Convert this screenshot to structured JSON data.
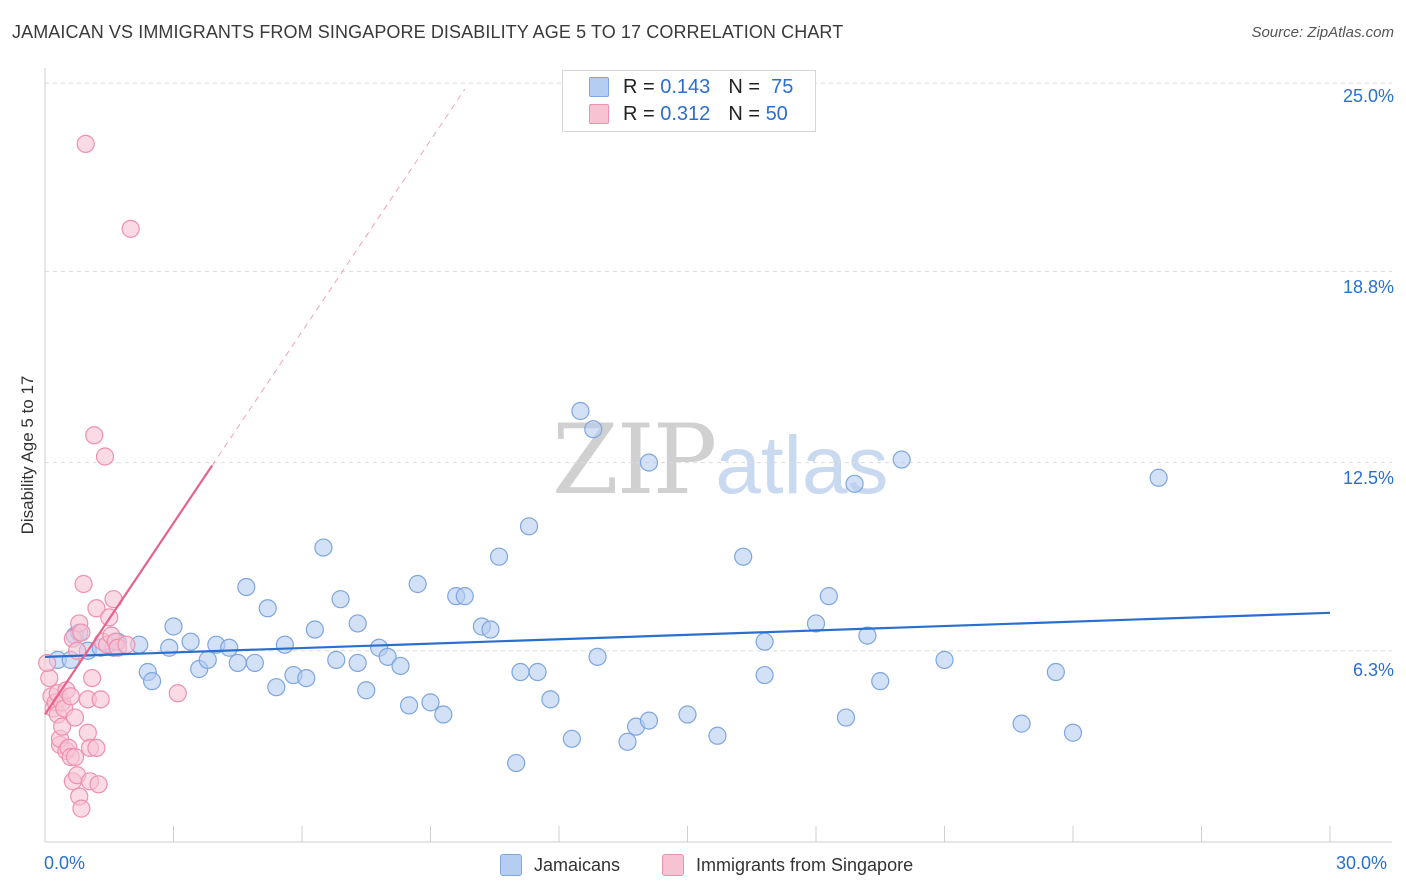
{
  "header": {
    "title": "JAMAICAN VS IMMIGRANTS FROM SINGAPORE DISABILITY AGE 5 TO 17 CORRELATION CHART",
    "source": "Source: ZipAtlas.com"
  },
  "watermark": {
    "zip": "ZIP",
    "atlas": "atlas"
  },
  "legend_top": {
    "rows": [
      {
        "r_label": "R =",
        "r_value": "0.143",
        "n_label": "N =",
        "n_value": "75"
      },
      {
        "r_label": "R =",
        "r_value": "0.312",
        "n_label": "N =",
        "n_value": "50"
      }
    ]
  },
  "legend_bottom": {
    "series_a": "Jamaicans",
    "series_b": "Immigrants from Singapore"
  },
  "axes": {
    "x_left": "0.0%",
    "x_right": "30.0%",
    "y_ticks": [
      "25.0%",
      "18.8%",
      "12.5%",
      "6.3%"
    ]
  },
  "colors": {
    "blue_fill": "#b5cdf0",
    "blue_stroke": "#7ea6de",
    "blue_line": "#2a6fd0",
    "pink_fill": "#f7c3d3",
    "pink_stroke": "#ee90ae",
    "pink_line": "#e8628e",
    "grid": "#dcdcdc",
    "accent_text": "#2a6fd0"
  },
  "chart_data": {
    "type": "scatter",
    "title": "JAMAICAN VS IMMIGRANTS FROM SINGAPORE DISABILITY AGE 5 TO 17 CORRELATION CHART",
    "xlabel": "",
    "ylabel": "Disability Age 5 to 17",
    "xlim": [
      0,
      30
    ],
    "ylim": [
      0,
      25.5
    ],
    "y_gridlines": [
      6.3,
      12.5,
      18.8,
      25.0
    ],
    "series": [
      {
        "name": "Jamaicans",
        "r": 0.143,
        "n": 75,
        "trend": {
          "x": [
            0,
            30
          ],
          "y": [
            6.1,
            7.55
          ]
        },
        "points": [
          [
            0.3,
            6.0
          ],
          [
            0.6,
            6.0
          ],
          [
            0.7,
            6.8
          ],
          [
            0.8,
            6.9
          ],
          [
            1.0,
            6.3
          ],
          [
            1.3,
            6.4
          ],
          [
            1.6,
            6.4
          ],
          [
            1.7,
            6.6
          ],
          [
            2.2,
            6.5
          ],
          [
            2.4,
            5.6
          ],
          [
            2.5,
            5.3
          ],
          [
            2.9,
            6.4
          ],
          [
            3.0,
            7.1
          ],
          [
            3.4,
            6.6
          ],
          [
            3.6,
            5.7
          ],
          [
            3.8,
            6.0
          ],
          [
            4.0,
            6.5
          ],
          [
            4.3,
            6.4
          ],
          [
            4.5,
            5.9
          ],
          [
            4.7,
            8.4
          ],
          [
            4.9,
            5.9
          ],
          [
            5.2,
            7.7
          ],
          [
            5.4,
            5.1
          ],
          [
            5.6,
            6.5
          ],
          [
            5.8,
            5.5
          ],
          [
            6.1,
            5.4
          ],
          [
            6.3,
            7.0
          ],
          [
            6.5,
            9.7
          ],
          [
            6.8,
            6.0
          ],
          [
            6.9,
            8.0
          ],
          [
            7.3,
            5.9
          ],
          [
            7.5,
            5.0
          ],
          [
            7.3,
            7.2
          ],
          [
            7.8,
            6.4
          ],
          [
            8.0,
            6.1
          ],
          [
            8.3,
            5.8
          ],
          [
            8.5,
            4.5
          ],
          [
            8.7,
            8.5
          ],
          [
            9.0,
            4.6
          ],
          [
            9.3,
            4.2
          ],
          [
            9.6,
            8.1
          ],
          [
            9.8,
            8.1
          ],
          [
            10.2,
            7.1
          ],
          [
            10.4,
            7.0
          ],
          [
            10.6,
            9.4
          ],
          [
            11.0,
            2.6
          ],
          [
            11.3,
            10.4
          ],
          [
            11.1,
            5.6
          ],
          [
            11.5,
            5.6
          ],
          [
            11.8,
            4.7
          ],
          [
            12.5,
            14.2
          ],
          [
            12.3,
            3.4
          ],
          [
            12.8,
            13.6
          ],
          [
            12.9,
            6.1
          ],
          [
            13.6,
            3.3
          ],
          [
            13.8,
            3.8
          ],
          [
            14.1,
            12.5
          ],
          [
            14.1,
            4.0
          ],
          [
            15.0,
            4.2
          ],
          [
            15.7,
            3.5
          ],
          [
            16.3,
            9.4
          ],
          [
            16.8,
            6.6
          ],
          [
            16.8,
            5.5
          ],
          [
            18.0,
            7.2
          ],
          [
            18.3,
            8.1
          ],
          [
            18.7,
            4.1
          ],
          [
            18.9,
            11.8
          ],
          [
            19.2,
            6.8
          ],
          [
            19.5,
            5.3
          ],
          [
            20.0,
            12.6
          ],
          [
            21.0,
            6.0
          ],
          [
            22.8,
            3.9
          ],
          [
            23.6,
            5.6
          ],
          [
            24.0,
            3.6
          ],
          [
            26.0,
            12.0
          ]
        ]
      },
      {
        "name": "Immigrants from Singapore",
        "r": 0.312,
        "n": 50,
        "trend": {
          "x": [
            0,
            3.9
          ],
          "y": [
            4.2,
            12.4
          ],
          "dashed_extension": {
            "x": [
              3.9,
              9.8
            ],
            "y": [
              12.4,
              24.8
            ]
          }
        },
        "points": [
          [
            0.1,
            5.4
          ],
          [
            0.15,
            4.8
          ],
          [
            0.2,
            4.4
          ],
          [
            0.25,
            4.6
          ],
          [
            0.3,
            4.9
          ],
          [
            0.3,
            4.2
          ],
          [
            0.35,
            3.2
          ],
          [
            0.35,
            3.4
          ],
          [
            0.4,
            4.6
          ],
          [
            0.4,
            3.8
          ],
          [
            0.45,
            4.4
          ],
          [
            0.5,
            5.0
          ],
          [
            0.5,
            3.0
          ],
          [
            0.55,
            3.1
          ],
          [
            0.6,
            4.8
          ],
          [
            0.6,
            2.8
          ],
          [
            0.65,
            6.7
          ],
          [
            0.65,
            2.0
          ],
          [
            0.7,
            4.1
          ],
          [
            0.7,
            2.8
          ],
          [
            0.75,
            6.3
          ],
          [
            0.75,
            2.2
          ],
          [
            0.8,
            7.2
          ],
          [
            0.8,
            1.5
          ],
          [
            0.85,
            6.9
          ],
          [
            0.85,
            1.1
          ],
          [
            0.9,
            8.5
          ],
          [
            0.95,
            23.0
          ],
          [
            1.0,
            4.7
          ],
          [
            1.0,
            3.6
          ],
          [
            1.05,
            3.1
          ],
          [
            1.05,
            2.0
          ],
          [
            1.1,
            5.4
          ],
          [
            1.15,
            13.4
          ],
          [
            1.2,
            7.7
          ],
          [
            1.2,
            3.1
          ],
          [
            1.25,
            1.9
          ],
          [
            1.3,
            4.7
          ],
          [
            1.35,
            6.6
          ],
          [
            1.4,
            12.7
          ],
          [
            1.45,
            6.5
          ],
          [
            1.5,
            7.4
          ],
          [
            1.55,
            6.8
          ],
          [
            1.6,
            8.0
          ],
          [
            1.65,
            6.6
          ],
          [
            1.7,
            6.4
          ],
          [
            1.9,
            6.5
          ],
          [
            2.0,
            20.2
          ],
          [
            3.1,
            4.9
          ],
          [
            0.05,
            5.9
          ]
        ]
      }
    ]
  }
}
